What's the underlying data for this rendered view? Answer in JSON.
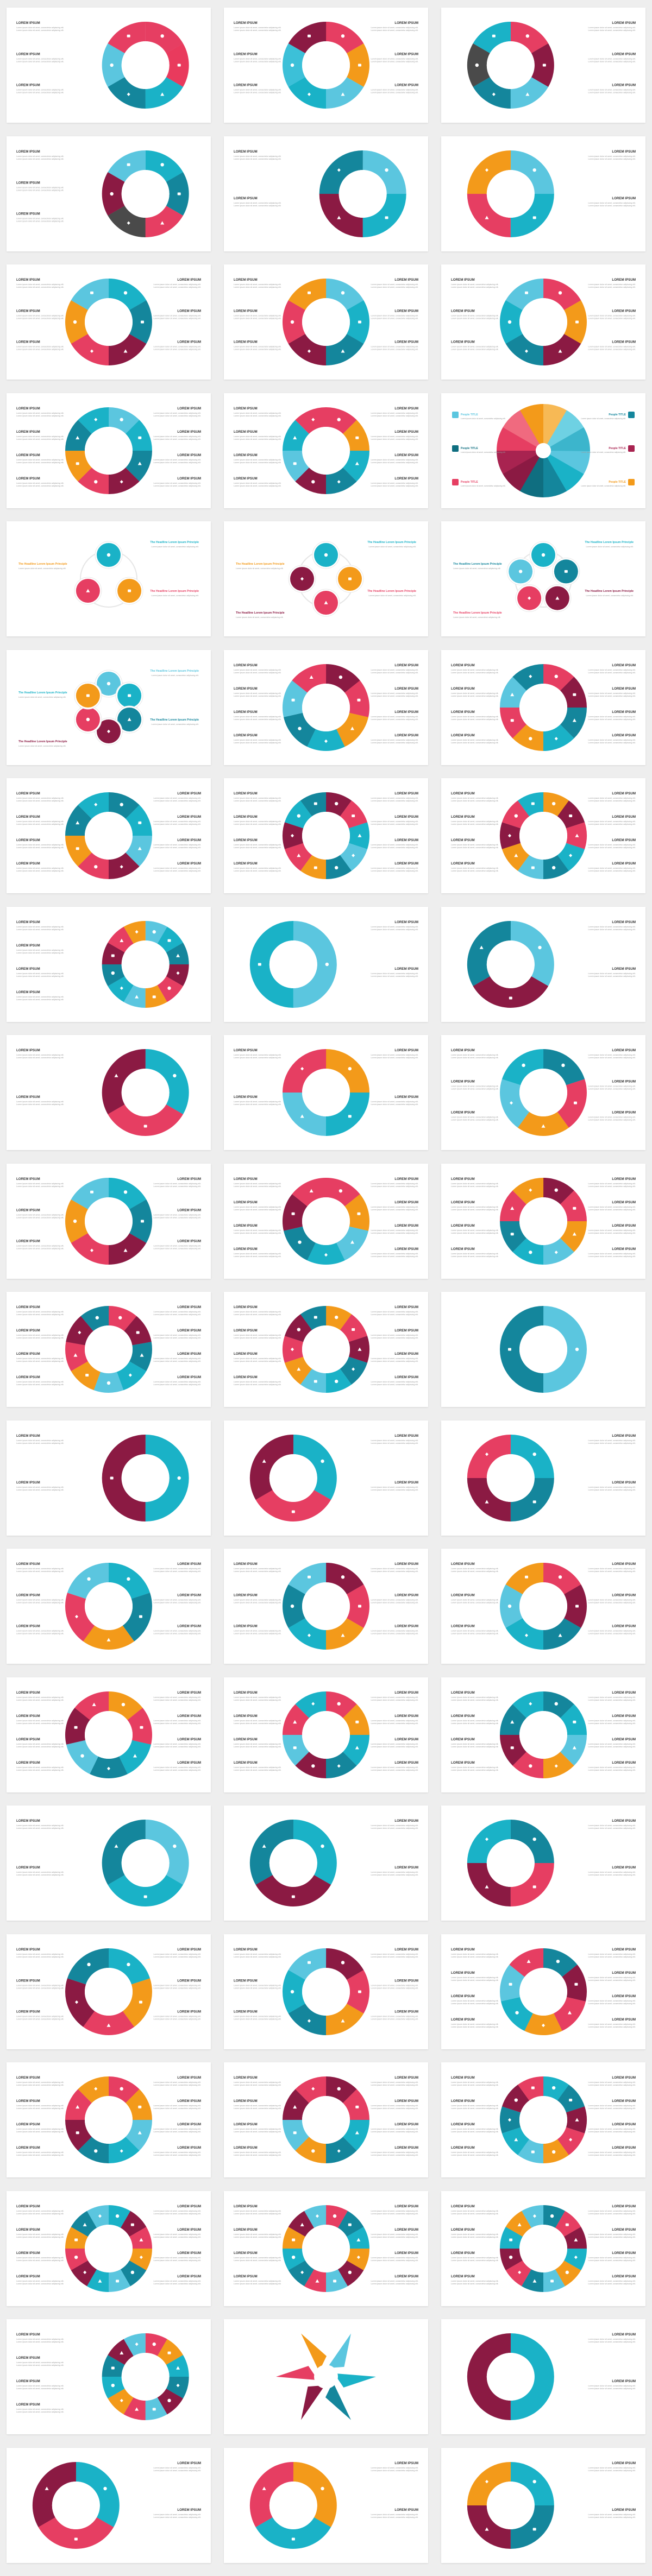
{
  "gallery": {
    "heading_text": "LOREM IPSUM",
    "body_text": "Lorem ipsum dolor sit amet, consectetur adipiscing elit.",
    "title_text": "The Headline Lorem Ipsum Principle",
    "people_text": "People TITLE",
    "columns": 3,
    "rows": 20,
    "slides": [
      {
        "segments": 6,
        "icons": true,
        "layout": "left",
        "colors": [
          "#e63e62",
          "#e93a5d",
          "#1ab2c7",
          "#14869c",
          "#5bc6df",
          "#e63e62"
        ]
      },
      {
        "segments": 6,
        "icons": true,
        "layout": "both",
        "colors": [
          "#e63e62",
          "#f39a1a",
          "#5bc6df",
          "#1ab2c7",
          "#3cc0d8",
          "#8b1a43"
        ]
      },
      {
        "segments": 6,
        "icons": true,
        "layout": "right",
        "colors": [
          "#e63e62",
          "#8b1a43",
          "#5bc6df",
          "#14869c",
          "#4a4a4a",
          "#1ab2c7"
        ]
      },
      {
        "segments": 6,
        "icons": true,
        "layout": "left",
        "colors": [
          "#1ab2c7",
          "#14869c",
          "#e63e62",
          "#4a4a4a",
          "#8b1a43",
          "#5bc6df"
        ]
      },
      {
        "segments": 4,
        "icons": true,
        "layout": "left",
        "colors": [
          "#5bc6df",
          "#1ab2c7",
          "#8b1a43",
          "#14869c"
        ]
      },
      {
        "segments": 4,
        "icons": true,
        "layout": "right",
        "colors": [
          "#5bc6df",
          "#1ab2c7",
          "#e63e62",
          "#f39a1a"
        ]
      },
      {
        "segments": 6,
        "icons": true,
        "layout": "both",
        "colors": [
          "#1ab2c7",
          "#14869c",
          "#8b1a43",
          "#e63e62",
          "#f39a1a",
          "#5bc6df"
        ]
      },
      {
        "segments": 6,
        "icons": true,
        "layout": "both",
        "colors": [
          "#5bc6df",
          "#1ab2c7",
          "#14869c",
          "#8b1a43",
          "#e63e62",
          "#f39a1a"
        ]
      },
      {
        "segments": 6,
        "icons": true,
        "layout": "both",
        "colors": [
          "#e63e62",
          "#f39a1a",
          "#8b1a43",
          "#14869c",
          "#1ab2c7",
          "#5bc6df"
        ]
      },
      {
        "segments": 8,
        "icons": true,
        "layout": "both",
        "colors": [
          "#5bc6df",
          "#1ab2c7",
          "#14869c",
          "#8b1a43",
          "#e63e62",
          "#f39a1a",
          "#14869c",
          "#1ab2c7"
        ]
      },
      {
        "segments": 8,
        "icons": true,
        "layout": "both",
        "colors": [
          "#e63e62",
          "#f39a1a",
          "#1ab2c7",
          "#14869c",
          "#8b1a43",
          "#5bc6df",
          "#1ab2c7",
          "#e63e62"
        ]
      },
      {
        "segments": 12,
        "icons": false,
        "layout": "people",
        "colors": [
          "#5bc6df",
          "#1ab2c7",
          "#14869c",
          "#0f6e80",
          "#8b1a43",
          "#a82350",
          "#e63e62",
          "#f06a7f",
          "#f39a1a",
          "#f7b955",
          "#6ed1e3",
          "#3cb5cc"
        ]
      },
      {
        "segments": 3,
        "icons": true,
        "layout": "flower",
        "colors": [
          "#1ab2c7",
          "#f39a1a",
          "#e63e62"
        ]
      },
      {
        "segments": 4,
        "icons": true,
        "layout": "flower",
        "colors": [
          "#1ab2c7",
          "#f39a1a",
          "#e63e62",
          "#8b1a43"
        ]
      },
      {
        "segments": 5,
        "icons": true,
        "layout": "flower",
        "colors": [
          "#1ab2c7",
          "#14869c",
          "#8b1a43",
          "#e63e62",
          "#5bc6df"
        ]
      },
      {
        "segments": 6,
        "icons": true,
        "layout": "flower",
        "colors": [
          "#5bc6df",
          "#1ab2c7",
          "#14869c",
          "#8b1a43",
          "#e63e62",
          "#f39a1a"
        ]
      },
      {
        "segments": 7,
        "icons": true,
        "layout": "both",
        "colors": [
          "#8b1a43",
          "#e63e62",
          "#f39a1a",
          "#1ab2c7",
          "#14869c",
          "#5bc6df",
          "#e63e62"
        ]
      },
      {
        "segments": 8,
        "icons": true,
        "layout": "both",
        "colors": [
          "#e63e62",
          "#8b1a43",
          "#14869c",
          "#1ab2c7",
          "#f39a1a",
          "#e63e62",
          "#5bc6df",
          "#14869c"
        ]
      },
      {
        "segments": 8,
        "icons": true,
        "layout": "both",
        "colors": [
          "#14869c",
          "#1ab2c7",
          "#5bc6df",
          "#8b1a43",
          "#e63e62",
          "#f39a1a",
          "#14869c",
          "#1ab2c7"
        ]
      },
      {
        "segments": 10,
        "icons": true,
        "layout": "both",
        "colors": [
          "#8b1a43",
          "#e63e62",
          "#1ab2c7",
          "#5bc6df",
          "#14869c",
          "#f39a1a",
          "#e63e62",
          "#8b1a43",
          "#1ab2c7",
          "#14869c"
        ]
      },
      {
        "segments": 10,
        "icons": true,
        "layout": "both",
        "colors": [
          "#f39a1a",
          "#8b1a43",
          "#e63e62",
          "#1ab2c7",
          "#14869c",
          "#5bc6df",
          "#f39a1a",
          "#8b1a43",
          "#e63e62",
          "#1ab2c7"
        ]
      },
      {
        "segments": 12,
        "icons": true,
        "layout": "left",
        "colors": [
          "#5bc6df",
          "#1ab2c7",
          "#14869c",
          "#8b1a43",
          "#e63e62",
          "#f39a1a",
          "#5bc6df",
          "#1ab2c7",
          "#14869c",
          "#8b1a43",
          "#e63e62",
          "#f39a1a"
        ]
      },
      {
        "segments": 2,
        "icons": true,
        "layout": "right",
        "colors": [
          "#5bc6df",
          "#1ab2c7"
        ]
      },
      {
        "segments": 3,
        "icons": true,
        "layout": "right",
        "colors": [
          "#5bc6df",
          "#8b1a43",
          "#14869c"
        ]
      },
      {
        "segments": 3,
        "icons": true,
        "layout": "left",
        "colors": [
          "#1ab2c7",
          "#e63e62",
          "#8b1a43"
        ]
      },
      {
        "segments": 4,
        "icons": true,
        "layout": "both",
        "colors": [
          "#f39a1a",
          "#1ab2c7",
          "#5bc6df",
          "#e63e62"
        ]
      },
      {
        "segments": 5,
        "icons": true,
        "layout": "both",
        "colors": [
          "#14869c",
          "#e63e62",
          "#f39a1a",
          "#5bc6df",
          "#1ab2c7"
        ]
      },
      {
        "segments": 6,
        "icons": true,
        "layout": "both",
        "colors": [
          "#1ab2c7",
          "#14869c",
          "#8b1a43",
          "#e63e62",
          "#f39a1a",
          "#5bc6df"
        ]
      },
      {
        "segments": 7,
        "icons": true,
        "layout": "both",
        "colors": [
          "#e63e62",
          "#f39a1a",
          "#5bc6df",
          "#1ab2c7",
          "#14869c",
          "#8b1a43",
          "#e63e62"
        ]
      },
      {
        "segments": 8,
        "icons": true,
        "layout": "both",
        "colors": [
          "#8b1a43",
          "#e63e62",
          "#f39a1a",
          "#5bc6df",
          "#1ab2c7",
          "#14869c",
          "#e63e62",
          "#f39a1a"
        ]
      },
      {
        "segments": 9,
        "icons": true,
        "layout": "both",
        "colors": [
          "#e63e62",
          "#8b1a43",
          "#14869c",
          "#1ab2c7",
          "#5bc6df",
          "#f39a1a",
          "#e63e62",
          "#8b1a43",
          "#14869c"
        ]
      },
      {
        "segments": 10,
        "icons": true,
        "layout": "both",
        "colors": [
          "#f39a1a",
          "#e63e62",
          "#8b1a43",
          "#14869c",
          "#1ab2c7",
          "#5bc6df",
          "#f39a1a",
          "#e63e62",
          "#8b1a43",
          "#14869c"
        ]
      },
      {
        "segments": 2,
        "icons": true,
        "layout": "none",
        "colors": [
          "#5bc6df",
          "#14869c"
        ]
      },
      {
        "segments": 2,
        "icons": true,
        "layout": "left",
        "colors": [
          "#1ab2c7",
          "#8b1a43"
        ]
      },
      {
        "segments": 3,
        "icons": true,
        "layout": "right",
        "colors": [
          "#1ab2c7",
          "#e63e62",
          "#8b1a43"
        ]
      },
      {
        "segments": 4,
        "icons": true,
        "layout": "right",
        "colors": [
          "#1ab2c7",
          "#14869c",
          "#8b1a43",
          "#e63e62"
        ]
      },
      {
        "segments": 5,
        "icons": true,
        "layout": "both",
        "colors": [
          "#1ab2c7",
          "#14869c",
          "#f39a1a",
          "#e63e62",
          "#5bc6df"
        ]
      },
      {
        "segments": 6,
        "icons": true,
        "layout": "both",
        "colors": [
          "#8b1a43",
          "#e63e62",
          "#f39a1a",
          "#1ab2c7",
          "#14869c",
          "#5bc6df"
        ]
      },
      {
        "segments": 6,
        "icons": true,
        "layout": "both",
        "colors": [
          "#e63e62",
          "#8b1a43",
          "#14869c",
          "#1ab2c7",
          "#5bc6df",
          "#f39a1a"
        ]
      },
      {
        "segments": 7,
        "icons": true,
        "layout": "both",
        "colors": [
          "#f39a1a",
          "#e63e62",
          "#1ab2c7",
          "#14869c",
          "#5bc6df",
          "#8b1a43",
          "#e63e62"
        ]
      },
      {
        "segments": 8,
        "icons": true,
        "layout": "both",
        "colors": [
          "#e63e62",
          "#f39a1a",
          "#1ab2c7",
          "#14869c",
          "#8b1a43",
          "#5bc6df",
          "#e63e62",
          "#1ab2c7"
        ]
      },
      {
        "segments": 8,
        "icons": true,
        "layout": "both",
        "colors": [
          "#14869c",
          "#1ab2c7",
          "#5bc6df",
          "#f39a1a",
          "#e63e62",
          "#8b1a43",
          "#14869c",
          "#1ab2c7"
        ]
      },
      {
        "segments": 3,
        "icons": true,
        "layout": "left",
        "colors": [
          "#5bc6df",
          "#1ab2c7",
          "#14869c"
        ]
      },
      {
        "segments": 3,
        "icons": true,
        "layout": "right",
        "colors": [
          "#1ab2c7",
          "#8b1a43",
          "#14869c"
        ]
      },
      {
        "segments": 4,
        "icons": true,
        "layout": "right",
        "colors": [
          "#14869c",
          "#e63e62",
          "#8b1a43",
          "#1ab2c7"
        ]
      },
      {
        "segments": 5,
        "icons": true,
        "layout": "both",
        "colors": [
          "#1ab2c7",
          "#f39a1a",
          "#e63e62",
          "#8b1a43",
          "#14869c"
        ]
      },
      {
        "segments": 6,
        "icons": true,
        "layout": "both",
        "colors": [
          "#8b1a43",
          "#e63e62",
          "#f39a1a",
          "#14869c",
          "#1ab2c7",
          "#5bc6df"
        ]
      },
      {
        "segments": 7,
        "icons": true,
        "layout": "both",
        "colors": [
          "#14869c",
          "#8b1a43",
          "#e63e62",
          "#f39a1a",
          "#1ab2c7",
          "#5bc6df",
          "#e63e62"
        ]
      },
      {
        "segments": 8,
        "icons": true,
        "layout": "both",
        "colors": [
          "#e63e62",
          "#f39a1a",
          "#5bc6df",
          "#1ab2c7",
          "#14869c",
          "#8b1a43",
          "#e63e62",
          "#f39a1a"
        ]
      },
      {
        "segments": 8,
        "icons": true,
        "layout": "both",
        "colors": [
          "#8b1a43",
          "#e63e62",
          "#1ab2c7",
          "#14869c",
          "#f39a1a",
          "#5bc6df",
          "#8b1a43",
          "#e63e62"
        ]
      },
      {
        "segments": 10,
        "icons": true,
        "layout": "both",
        "colors": [
          "#1ab2c7",
          "#14869c",
          "#8b1a43",
          "#e63e62",
          "#f39a1a",
          "#5bc6df",
          "#1ab2c7",
          "#14869c",
          "#8b1a43",
          "#e63e62"
        ]
      },
      {
        "segments": 12,
        "icons": true,
        "layout": "both",
        "colors": [
          "#1ab2c7",
          "#8b1a43",
          "#e63e62",
          "#f39a1a",
          "#14869c",
          "#5bc6df",
          "#1ab2c7",
          "#8b1a43",
          "#e63e62",
          "#f39a1a",
          "#14869c",
          "#5bc6df"
        ]
      },
      {
        "segments": 12,
        "icons": true,
        "layout": "both",
        "colors": [
          "#e63e62",
          "#14869c",
          "#1ab2c7",
          "#f39a1a",
          "#8b1a43",
          "#5bc6df",
          "#e63e62",
          "#14869c",
          "#1ab2c7",
          "#f39a1a",
          "#8b1a43",
          "#5bc6df"
        ]
      },
      {
        "segments": 12,
        "icons": true,
        "layout": "both",
        "colors": [
          "#14869c",
          "#e63e62",
          "#8b1a43",
          "#1ab2c7",
          "#f39a1a",
          "#5bc6df",
          "#14869c",
          "#e63e62",
          "#8b1a43",
          "#1ab2c7",
          "#f39a1a",
          "#5bc6df"
        ]
      },
      {
        "segments": 12,
        "icons": true,
        "layout": "left",
        "colors": [
          "#e63e62",
          "#f39a1a",
          "#1ab2c7",
          "#14869c",
          "#8b1a43",
          "#5bc6df",
          "#e63e62",
          "#f39a1a",
          "#1ab2c7",
          "#14869c",
          "#8b1a43",
          "#5bc6df"
        ]
      },
      {
        "segments": 6,
        "icons": false,
        "layout": "star",
        "colors": [
          "#1ab2c7",
          "#14869c",
          "#8b1a43",
          "#e63e62",
          "#f39a1a",
          "#5bc6df"
        ]
      },
      {
        "segments": 2,
        "icons": false,
        "layout": "right",
        "colors": [
          "#1ab2c7",
          "#8b1a43"
        ]
      },
      {
        "segments": 3,
        "icons": true,
        "layout": "right",
        "colors": [
          "#1ab2c7",
          "#e63e62",
          "#8b1a43"
        ]
      },
      {
        "segments": 3,
        "icons": true,
        "layout": "right",
        "colors": [
          "#f39a1a",
          "#1ab2c7",
          "#e63e62"
        ]
      },
      {
        "segments": 4,
        "icons": true,
        "layout": "right",
        "colors": [
          "#1ab2c7",
          "#14869c",
          "#8b1a43",
          "#f39a1a"
        ]
      }
    ]
  }
}
